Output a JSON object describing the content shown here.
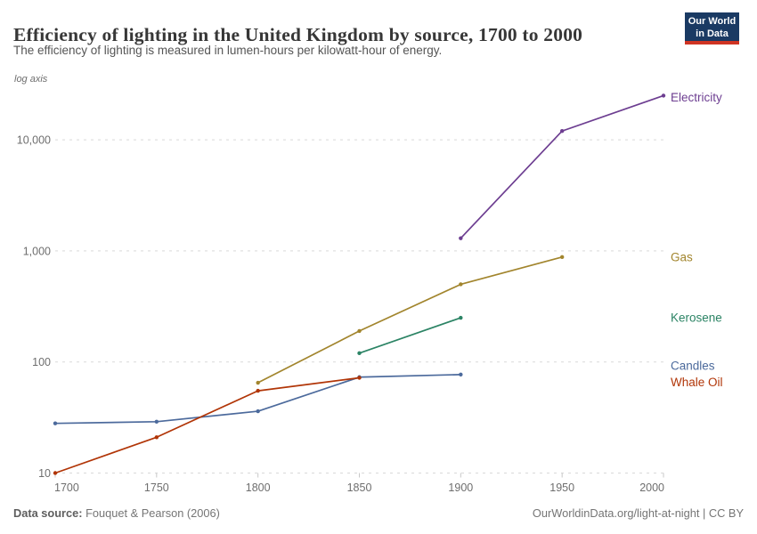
{
  "header": {
    "title": "Efficiency of lighting in the United Kingdom by source, 1700 to 2000",
    "subtitle": "The efficiency of lighting is measured in lumen-hours per kilowatt-hour of energy."
  },
  "logo": {
    "line1": "Our World",
    "line2": "in Data",
    "bg_color": "#1a3a63",
    "accent_color": "#cf3423"
  },
  "axis_note": "log axis",
  "footer": {
    "source_label": "Data source:",
    "source_text": " Fouquet & Pearson (2006)",
    "right_text": "OurWorldinData.org/light-at-night | CC BY"
  },
  "chart_data": {
    "type": "line",
    "title": "Efficiency of lighting in the United Kingdom by source, 1700 to 2000",
    "xlabel": "",
    "ylabel": "lumen-hours per kilowatt-hour of energy",
    "y_scale": "log",
    "x_range": [
      1700,
      2000
    ],
    "ylim": [
      10,
      30000
    ],
    "grid": "horizontal-dashed",
    "legend_position": "right",
    "grid_color": "#d9d9d9",
    "axis_text_color": "#6e6e6e",
    "x_ticks": [
      1700,
      1750,
      1800,
      1850,
      1900,
      1950,
      2000
    ],
    "y_ticks": [
      {
        "value": 10,
        "label": "10"
      },
      {
        "value": 100,
        "label": "100"
      },
      {
        "value": 1000,
        "label": "1,000"
      },
      {
        "value": 10000,
        "label": "10,000"
      }
    ],
    "series": [
      {
        "name": "Candles",
        "color": "#4c6a9c",
        "label_dy": -10,
        "x": [
          1700,
          1750,
          1800,
          1850,
          1900
        ],
        "y": [
          28,
          29,
          36,
          73,
          77
        ]
      },
      {
        "name": "Whale Oil",
        "color": "#b13507",
        "label_dy": 5,
        "x": [
          1700,
          1750,
          1800,
          1850
        ],
        "y": [
          10,
          21,
          55,
          72
        ]
      },
      {
        "name": "Gas",
        "color": "#a2852d",
        "label_dy": 0,
        "x": [
          1800,
          1850,
          1900,
          1950
        ],
        "y": [
          65,
          190,
          500,
          880
        ]
      },
      {
        "name": "Kerosene",
        "color": "#2c8465",
        "label_dy": 0,
        "x": [
          1850,
          1900
        ],
        "y": [
          120,
          250
        ]
      },
      {
        "name": "Electricity",
        "color": "#6d3e91",
        "label_dy": 2,
        "x": [
          1900,
          1950,
          2000
        ],
        "y": [
          1300,
          12000,
          25000
        ]
      }
    ]
  }
}
